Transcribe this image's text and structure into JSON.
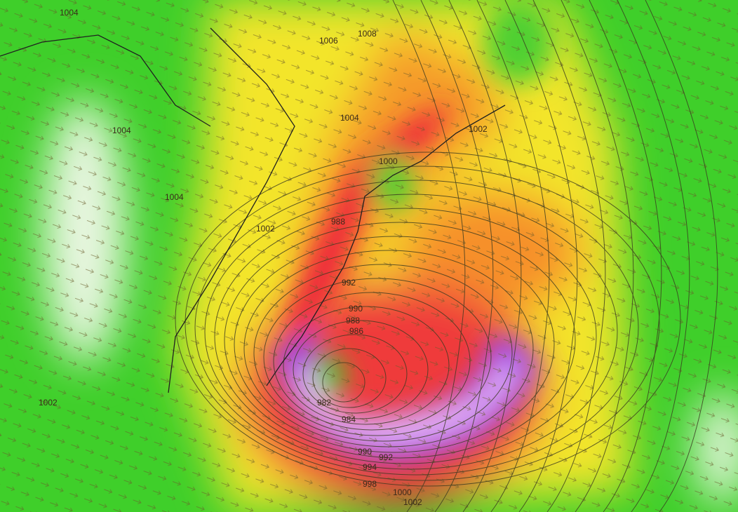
{
  "map": {
    "type": "weather model wind and sea-level pressure map",
    "colors": {
      "calm": "#3fcf2a",
      "light": "#f2f7ea",
      "moderate": "#f5e82a",
      "strong": "#f7862a",
      "very_strong": "#ee2a3a",
      "extreme": "#a040e8",
      "peak": "#f0c0f8"
    },
    "isobar_labels": [
      "1004",
      "1006",
      "1008",
      "1004",
      "1004",
      "1004",
      "1000",
      "1002",
      "1002",
      "988",
      "992",
      "990",
      "988",
      "986",
      "982",
      "984",
      "990",
      "992",
      "994",
      "998",
      "1000",
      "1002",
      "1002"
    ]
  }
}
